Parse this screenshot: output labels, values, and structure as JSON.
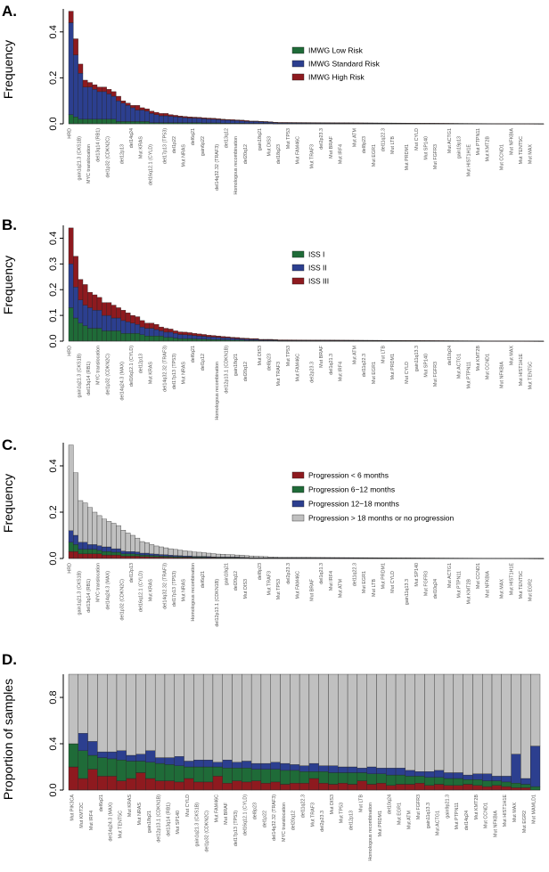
{
  "colors": {
    "green": "#1f6b38",
    "blue": "#2c3f8f",
    "red": "#8e1a1f",
    "grey": "#c0c0c0",
    "dark_grey": "#888888"
  },
  "chart_data": [
    {
      "type": "bar",
      "stacked": true,
      "panel": "A.",
      "ylabel": "Frequency",
      "ylim": [
        0,
        0.5
      ],
      "yticks": [
        "0.0",
        "0.2",
        "0.4"
      ],
      "legend": [
        "IMWG Low Risk",
        "IMWG Standard Risk",
        "IMWG High Risk"
      ],
      "categories": [
        "HRD",
        "gain1q21.3 (CKS1B)",
        "MYC translocation",
        "del13q14 (RB1)",
        "del1p32 (CDKN2C)",
        "del12p13",
        "del14q24",
        "Mut KRAS",
        "del16q12.1 (CYLD)",
        "del17p13 (TP53)",
        "del1p22",
        "Mut NRAS",
        "del6q21",
        "gain6p22",
        "del14q32.32 (TRAF3)",
        "del13q12",
        "Homologous recombination",
        "del20q12",
        "gain18q21",
        "Mut DIS3",
        "del18q23",
        "Mut TP53",
        "Mut FAM46C",
        "Mut TRAF3",
        "del2p23.3",
        "Mut BRAF",
        "Mut IRF4",
        "Mut ATM",
        "del8p23",
        "Mut EGR1",
        "del11q22.3",
        "Mut LTB",
        "Mut PRDM1",
        "Mut CYLD",
        "Mut SP140",
        "Mut FGFR3",
        "Mut ACTG1",
        "gain19p13",
        "Mut HIST1H1E",
        "Mut PTPN11",
        "Mut KMT2B",
        "Mut CCND1",
        "Mut NFKBIA",
        "Mut TENT5C",
        "Mut MAX"
      ],
      "series": [
        {
          "name": "IMWG Low Risk",
          "color": "green",
          "values": [
            0.04,
            0.03,
            0.02,
            0.02,
            0.02,
            0.02,
            0.02,
            0.02,
            0.02,
            0.02,
            0.01,
            0.01,
            0.01,
            0.01,
            0.01,
            0.01,
            0.01,
            0.005,
            0.005,
            0.005,
            0.005,
            0.005,
            0.005,
            0.005,
            0.005,
            0.005,
            0.005,
            0.005,
            0.004,
            0.004,
            0.004,
            0.004,
            0.003,
            0.003,
            0.003,
            0.003,
            0.003,
            0.002,
            0.002,
            0.002,
            0.002,
            0.002,
            0.002,
            0.001,
            0.001
          ]
        },
        {
          "name": "IMWG Standard Risk",
          "color": "blue",
          "values": [
            0.4,
            0.27,
            0.2,
            0.14,
            0.14,
            0.13,
            0.12,
            0.12,
            0.11,
            0.1,
            0.09,
            0.08,
            0.07,
            0.06,
            0.05,
            0.05,
            0.045,
            0.04,
            0.035,
            0.03,
            0.03,
            0.028,
            0.026,
            0.024,
            0.022,
            0.02,
            0.02,
            0.019,
            0.018,
            0.017,
            0.016,
            0.015,
            0.014,
            0.013,
            0.012,
            0.011,
            0.01,
            0.009,
            0.008,
            0.008,
            0.007,
            0.006,
            0.005,
            0.004,
            0.003
          ]
        },
        {
          "name": "IMWG High Risk",
          "color": "red",
          "values": [
            0.05,
            0.07,
            0.04,
            0.03,
            0.02,
            0.02,
            0.02,
            0.02,
            0.02,
            0.02,
            0.02,
            0.01,
            0.01,
            0.01,
            0.02,
            0.01,
            0.01,
            0.01,
            0.01,
            0.01,
            0.01,
            0.007,
            0.006,
            0.005,
            0.005,
            0.005,
            0.004,
            0.004,
            0.004,
            0.004,
            0.004,
            0.003,
            0.003,
            0.003,
            0.003,
            0.003,
            0.003,
            0.003,
            0.002,
            0.002,
            0.002,
            0.002,
            0.002,
            0.002,
            0.002
          ]
        }
      ]
    },
    {
      "type": "bar",
      "stacked": true,
      "panel": "B.",
      "ylabel": "Frequency",
      "ylim": [
        0,
        0.45
      ],
      "yticks": [
        "0.0",
        "0.1",
        "0.2",
        "0.3",
        "0.4"
      ],
      "legend": [
        "ISS I",
        "ISS II",
        "ISS III"
      ],
      "categories": [
        "HRD",
        "gain1q21.3 (CKS1B)",
        "del13q14 (RB1)",
        "MYC translocation",
        "del1p32 (CDKN2C)",
        "del14q24.3 (MAX)",
        "del16q12.1 (CYLD)",
        "del12p13",
        "Mut KRAS",
        "del14q32.32 (TRAF3)",
        "del17p13 (TP53)",
        "Mut NRAS",
        "del6q21",
        "del1p12",
        "Homologous recombination",
        "del12p13.1 (CDKN1B)",
        "gain18q21",
        "del20q12",
        "Mut DIS3",
        "del8p23",
        "Mut TRAF3",
        "Mut TP53",
        "Mut FAM46C",
        "del2p23.3",
        "Mut BRAF",
        "del1q21.3",
        "Mut IRF4",
        "Mut ATM",
        "del11q22.3",
        "Mut EGR1",
        "Mut LTB",
        "Mut PRDM1",
        "Mut CYLD",
        "gain11q13.3",
        "Mut SP140",
        "Mut FGFR3",
        "del10q24",
        "Mut ACTG1",
        "Mut PTPN11",
        "Mut KMT2B",
        "Mut CCND1",
        "Mut NFKBIA",
        "Mut MAX",
        "Mut HIST1H1E",
        "Mut TENT5C"
      ],
      "series": [
        {
          "name": "ISS I",
          "color": "green",
          "values": [
            0.13,
            0.09,
            0.07,
            0.06,
            0.05,
            0.05,
            0.05,
            0.04,
            0.04,
            0.04,
            0.04,
            0.03,
            0.03,
            0.03,
            0.03,
            0.025,
            0.02,
            0.02,
            0.02,
            0.02,
            0.015,
            0.015,
            0.012,
            0.01,
            0.01,
            0.01,
            0.009,
            0.008,
            0.008,
            0.007,
            0.006,
            0.006,
            0.005,
            0.005,
            0.004,
            0.004,
            0.004,
            0.003,
            0.003,
            0.003,
            0.002,
            0.002,
            0.002,
            0.002,
            0.001
          ]
        },
        {
          "name": "ISS II",
          "color": "blue",
          "values": [
            0.17,
            0.12,
            0.09,
            0.08,
            0.08,
            0.07,
            0.07,
            0.06,
            0.06,
            0.05,
            0.05,
            0.05,
            0.045,
            0.04,
            0.035,
            0.03,
            0.03,
            0.03,
            0.025,
            0.02,
            0.02,
            0.02,
            0.018,
            0.016,
            0.015,
            0.014,
            0.013,
            0.012,
            0.011,
            0.01,
            0.01,
            0.009,
            0.008,
            0.008,
            0.007,
            0.006,
            0.005,
            0.005,
            0.004,
            0.004,
            0.003,
            0.003,
            0.003,
            0.002,
            0.002
          ]
        },
        {
          "name": "ISS III",
          "color": "red",
          "values": [
            0.14,
            0.12,
            0.08,
            0.08,
            0.06,
            0.06,
            0.05,
            0.05,
            0.05,
            0.05,
            0.04,
            0.04,
            0.035,
            0.03,
            0.03,
            0.025,
            0.02,
            0.02,
            0.02,
            0.015,
            0.015,
            0.012,
            0.01,
            0.01,
            0.01,
            0.009,
            0.008,
            0.008,
            0.007,
            0.006,
            0.006,
            0.005,
            0.005,
            0.004,
            0.004,
            0.004,
            0.003,
            0.003,
            0.003,
            0.003,
            0.002,
            0.002,
            0.002,
            0.002,
            0.002
          ]
        }
      ]
    },
    {
      "type": "bar",
      "stacked": true,
      "panel": "C.",
      "ylabel": "Frequency",
      "ylim": [
        0,
        0.5
      ],
      "yticks": [
        "0.0",
        "0.2",
        "0.4"
      ],
      "legend": [
        "Progression < 6 months",
        "Progression 6−12 months",
        "Progression 12−18 months",
        "Progression > 18 months or no progression"
      ],
      "categories": [
        "HRD",
        "gain1q21.3 (CKS1B)",
        "del13q14 (RB1)",
        "MYC translocation",
        "del14q24.3 (MAX)",
        "del1p32 (CDKN2C)",
        "del12p13",
        "del16q12.1 (CYLD)",
        "Mut KRAS",
        "del14q32.32 (TRAF3)",
        "del17p13 (TP53)",
        "Mut NRAS",
        "Homologous recombination",
        "del6q21",
        "del12p13.1 (CDKN1B)",
        "gain18q21",
        "del20q12",
        "Mut DIS3",
        "del8p23",
        "Mut TRAF3",
        "Mut TP53",
        "del2p23.3",
        "Mut FAM46C",
        "Mut BRAF",
        "del1q21.3",
        "Mut IRF4",
        "Mut ATM",
        "del11q22.3",
        "Mut EGR1",
        "Mut LTB",
        "Mut PRDM1",
        "Mut CYLD",
        "gain11q13.3",
        "Mut SP140",
        "Mut FGFR3",
        "del10q24",
        "Mut ACTG1",
        "Mut PTPN11",
        "Mut KMT2B",
        "Mut CCND1",
        "Mut NFKBIA",
        "Mut MAX",
        "Mut HIST1H1E",
        "Mut TENT5C",
        "Mut EGR2"
      ],
      "series": [
        {
          "name": "Progression < 6 months",
          "color": "red",
          "values": [
            0.03,
            0.03,
            0.02,
            0.02,
            0.02,
            0.02,
            0.02,
            0.015,
            0.015,
            0.015,
            0.015,
            0.01,
            0.01,
            0.01,
            0.01,
            0.008,
            0.008,
            0.007,
            0.006,
            0.006,
            0.005,
            0.005,
            0.004,
            0.004,
            0.004,
            0.004,
            0.003,
            0.003,
            0.003,
            0.003,
            0.003,
            0.002,
            0.002,
            0.002,
            0.002,
            0.002,
            0.002,
            0.002,
            0.001,
            0.001,
            0.001,
            0.001,
            0.001,
            0.001,
            0.001
          ]
        },
        {
          "name": "Progression 6−12 months",
          "color": "green",
          "values": [
            0.04,
            0.03,
            0.02,
            0.02,
            0.02,
            0.02,
            0.015,
            0.015,
            0.015,
            0.012,
            0.012,
            0.01,
            0.01,
            0.01,
            0.008,
            0.007,
            0.007,
            0.006,
            0.006,
            0.005,
            0.005,
            0.004,
            0.004,
            0.004,
            0.003,
            0.003,
            0.003,
            0.003,
            0.003,
            0.002,
            0.002,
            0.002,
            0.002,
            0.002,
            0.002,
            0.002,
            0.001,
            0.001,
            0.001,
            0.001,
            0.001,
            0.001,
            0.001,
            0.001,
            0.001
          ]
        },
        {
          "name": "Progression 12−18 months",
          "color": "blue",
          "values": [
            0.05,
            0.04,
            0.03,
            0.03,
            0.02,
            0.02,
            0.02,
            0.02,
            0.02,
            0.015,
            0.015,
            0.012,
            0.01,
            0.01,
            0.01,
            0.008,
            0.008,
            0.007,
            0.007,
            0.006,
            0.006,
            0.005,
            0.005,
            0.004,
            0.004,
            0.004,
            0.003,
            0.003,
            0.003,
            0.003,
            0.002,
            0.002,
            0.002,
            0.002,
            0.002,
            0.002,
            0.002,
            0.001,
            0.001,
            0.001,
            0.001,
            0.001,
            0.001,
            0.001,
            0.001
          ]
        },
        {
          "name": "Progression > 18 months or no progression",
          "color": "grey",
          "values": [
            0.37,
            0.27,
            0.18,
            0.17,
            0.16,
            0.14,
            0.13,
            0.12,
            0.11,
            0.11,
            0.1,
            0.09,
            0.08,
            0.07,
            0.06,
            0.05,
            0.045,
            0.04,
            0.035,
            0.033,
            0.03,
            0.028,
            0.026,
            0.024,
            0.022,
            0.02,
            0.019,
            0.018,
            0.016,
            0.015,
            0.014,
            0.013,
            0.012,
            0.011,
            0.01,
            0.009,
            0.009,
            0.008,
            0.008,
            0.007,
            0.006,
            0.005,
            0.004,
            0.003,
            0.002
          ]
        }
      ]
    },
    {
      "type": "bar",
      "stacked": true,
      "panel": "D.",
      "ylabel": "Proportion of samples",
      "ylim": [
        0,
        1
      ],
      "yticks": [
        "0.0",
        "0.4",
        "0.8"
      ],
      "categories": [
        "Mut PIK3CA",
        "Mut KMT2C",
        "Mut IRF4",
        "del6q21",
        "del14q24.3 (MAX)",
        "Mut TENT5C",
        "Mut KRAS",
        "Mut NRAS",
        "gain18q21",
        "del12p13.1 (CDKN1B)",
        "del13q14 (RB1)",
        "Mut SP140",
        "Mut CYLD",
        "gain1q21.3 (CKS1B)",
        "del1p32 (CDKN2C)",
        "Mut FAM46C",
        "Mut BRAF",
        "del17p13 (TP53)",
        "del16q12.1 (CYLD)",
        "del8p23",
        "del1p22",
        "del14q32.32 (TRAF3)",
        "MYC translocation",
        "del20q12",
        "del11q22.3",
        "Mut TRAF3",
        "del2p23.3",
        "Mut DIS3",
        "Mut TP53",
        "del12p13",
        "Mut LTB",
        "Homologous recombination",
        "Mut PRDM1",
        "del10q24",
        "Mut EGR1",
        "Mut ATM",
        "Mut FGFR3",
        "gain11q13.3",
        "Mut ACTG1",
        "gain9p21.3",
        "Mut PTPN11",
        "del14q24",
        "Mut KMT2B",
        "Mut CCND1",
        "Mut NFKBIA",
        "Mut HIST1H1E",
        "Mut MAX",
        "Mut EGR2",
        "Mut MAMLD1"
      ],
      "series": [
        {
          "name": "Progression < 6 months",
          "color": "red",
          "values": [
            0.2,
            0.1,
            0.18,
            0.12,
            0.12,
            0.08,
            0.1,
            0.15,
            0.1,
            0.08,
            0.08,
            0.07,
            0.1,
            0.07,
            0.07,
            0.12,
            0.06,
            0.08,
            0.07,
            0.08,
            0.06,
            0.07,
            0.05,
            0.06,
            0.06,
            0.1,
            0.06,
            0.05,
            0.06,
            0.05,
            0.08,
            0.05,
            0.06,
            0.04,
            0.05,
            0.05,
            0.06,
            0.04,
            0.05,
            0.04,
            0.04,
            0.05,
            0.04,
            0.03,
            0.04,
            0.03,
            0.02,
            0.02,
            0.0
          ]
        },
        {
          "name": "Progression 6−12 months",
          "color": "green",
          "values": [
            0.2,
            0.24,
            0.12,
            0.16,
            0.15,
            0.18,
            0.15,
            0.1,
            0.14,
            0.15,
            0.14,
            0.14,
            0.1,
            0.13,
            0.13,
            0.08,
            0.13,
            0.11,
            0.12,
            0.1,
            0.12,
            0.11,
            0.12,
            0.11,
            0.1,
            0.06,
            0.1,
            0.1,
            0.09,
            0.1,
            0.07,
            0.09,
            0.08,
            0.09,
            0.08,
            0.07,
            0.06,
            0.07,
            0.06,
            0.06,
            0.06,
            0.04,
            0.05,
            0.05,
            0.04,
            0.04,
            0.04,
            0.03,
            0.03
          ]
        },
        {
          "name": "Progression 12−18 months",
          "color": "blue",
          "values": [
            0.0,
            0.15,
            0.12,
            0.05,
            0.06,
            0.08,
            0.05,
            0.06,
            0.1,
            0.05,
            0.06,
            0.08,
            0.05,
            0.06,
            0.06,
            0.04,
            0.07,
            0.05,
            0.06,
            0.05,
            0.05,
            0.06,
            0.06,
            0.05,
            0.05,
            0.07,
            0.05,
            0.06,
            0.05,
            0.05,
            0.04,
            0.06,
            0.05,
            0.06,
            0.06,
            0.05,
            0.04,
            0.05,
            0.06,
            0.05,
            0.05,
            0.04,
            0.05,
            0.06,
            0.04,
            0.05,
            0.25,
            0.05,
            0.35
          ]
        },
        {
          "name": "Progression > 18 months or no progression",
          "color": "grey",
          "values": [
            0.6,
            0.51,
            0.58,
            0.67,
            0.67,
            0.66,
            0.7,
            0.69,
            0.66,
            0.72,
            0.72,
            0.71,
            0.75,
            0.74,
            0.74,
            0.76,
            0.74,
            0.76,
            0.75,
            0.77,
            0.77,
            0.76,
            0.77,
            0.78,
            0.79,
            0.77,
            0.79,
            0.79,
            0.8,
            0.8,
            0.81,
            0.8,
            0.81,
            0.81,
            0.81,
            0.83,
            0.84,
            0.84,
            0.83,
            0.85,
            0.85,
            0.87,
            0.86,
            0.86,
            0.88,
            0.88,
            0.69,
            0.9,
            0.62
          ]
        }
      ]
    }
  ]
}
